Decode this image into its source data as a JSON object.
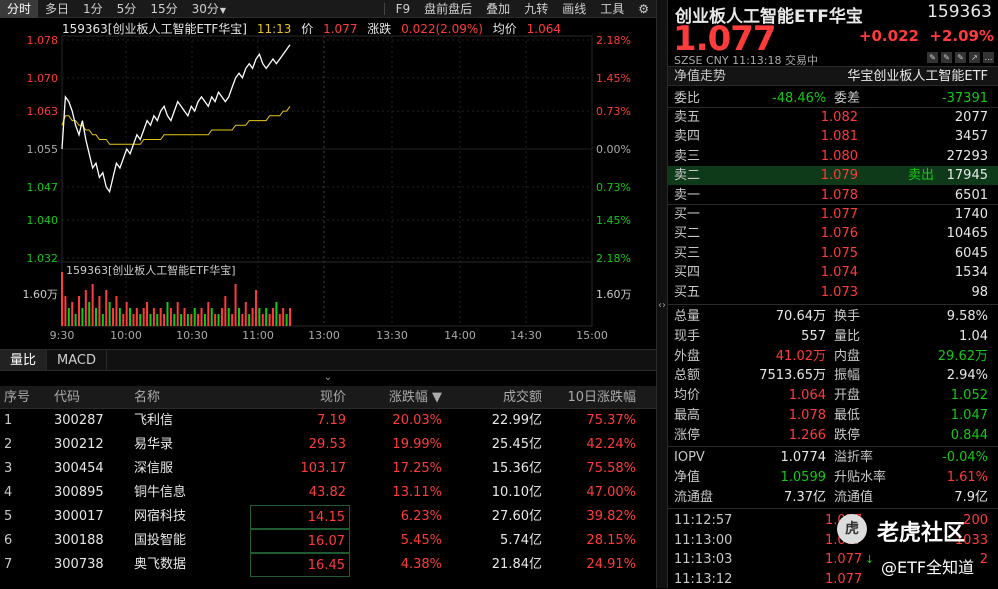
{
  "toolbar": {
    "tabs": [
      "分时",
      "多日",
      "1分",
      "5分",
      "15分",
      "30分"
    ],
    "more": [
      "F9",
      "盘前盘后",
      "叠加",
      "九转",
      "画线",
      "工具"
    ]
  },
  "info": {
    "name": "159363[创业板人工智能ETF华宝]",
    "time": "11:13",
    "price_label": "价",
    "price": "1.077",
    "chg_label": "涨跌",
    "chg": "0.022(2.09%)",
    "avg_label": "均价",
    "avg": "1.064"
  },
  "chart_data": {
    "type": "line",
    "y_ticks_left": [
      "1.078",
      "1.070",
      "1.063",
      "1.055",
      "1.047",
      "1.040",
      "1.032"
    ],
    "y_ticks_right": [
      "2.18%",
      "1.45%",
      "0.73%",
      "0.00%",
      "0.73%",
      "1.45%",
      "2.18%"
    ],
    "vol_label_left": "1.60万",
    "vol_label_right": "1.60万",
    "vol_series_label": "159363[创业板人工智能ETF华宝]",
    "x_ticks": [
      "9:30",
      "10:00",
      "10:30",
      "11:00",
      "13:00",
      "13:30",
      "14:00",
      "14:30",
      "15:00"
    ],
    "ylim": [
      1.032,
      1.078
    ],
    "prev_close": 1.055,
    "price_series": [
      1.055,
      1.066,
      1.065,
      1.063,
      1.06,
      1.058,
      1.061,
      1.057,
      1.054,
      1.051,
      1.052,
      1.049,
      1.05,
      1.047,
      1.046,
      1.049,
      1.052,
      1.051,
      1.053,
      1.055,
      1.054,
      1.056,
      1.058,
      1.057,
      1.059,
      1.061,
      1.06,
      1.062,
      1.061,
      1.063,
      1.064,
      1.062,
      1.061,
      1.063,
      1.065,
      1.064,
      1.063,
      1.062,
      1.064,
      1.063,
      1.065,
      1.066,
      1.065,
      1.064,
      1.066,
      1.065,
      1.067,
      1.066,
      1.065,
      1.066,
      1.068,
      1.07,
      1.071,
      1.07,
      1.072,
      1.073,
      1.072,
      1.074,
      1.075,
      1.073,
      1.072,
      1.073,
      1.074,
      1.073,
      1.074,
      1.075,
      1.076,
      1.077
    ],
    "avg_series": [
      1.06,
      1.062,
      1.062,
      1.061,
      1.061,
      1.06,
      1.06,
      1.059,
      1.059,
      1.058,
      1.058,
      1.057,
      1.057,
      1.057,
      1.056,
      1.056,
      1.056,
      1.056,
      1.056,
      1.056,
      1.056,
      1.056,
      1.056,
      1.056,
      1.057,
      1.057,
      1.057,
      1.057,
      1.057,
      1.057,
      1.058,
      1.058,
      1.058,
      1.058,
      1.058,
      1.058,
      1.058,
      1.058,
      1.058,
      1.058,
      1.058,
      1.058,
      1.058,
      1.058,
      1.059,
      1.059,
      1.059,
      1.059,
      1.059,
      1.059,
      1.059,
      1.06,
      1.06,
      1.06,
      1.06,
      1.061,
      1.061,
      1.061,
      1.061,
      1.061,
      1.061,
      1.062,
      1.062,
      1.062,
      1.062,
      1.063,
      1.063,
      1.064
    ],
    "volume_series": [
      0.9,
      0.5,
      0.3,
      0.4,
      0.2,
      0.5,
      0.3,
      0.6,
      0.4,
      0.7,
      0.3,
      0.5,
      0.2,
      0.6,
      0.4,
      0.3,
      0.5,
      0.3,
      0.2,
      0.4,
      0.3,
      0.2,
      0.3,
      0.2,
      0.3,
      0.4,
      0.2,
      0.3,
      0.2,
      0.3,
      0.2,
      0.4,
      0.3,
      0.2,
      0.4,
      0.2,
      0.3,
      0.2,
      0.2,
      0.3,
      0.2,
      0.3,
      0.2,
      0.4,
      0.3,
      0.2,
      0.2,
      0.3,
      0.5,
      0.3,
      0.2,
      0.7,
      0.3,
      0.2,
      0.4,
      0.2,
      0.3,
      0.6,
      0.3,
      0.2,
      0.3,
      0.2,
      0.3,
      0.4,
      0.2,
      0.3,
      0.2,
      0.3
    ],
    "volume_colors": [
      "r",
      "r",
      "g",
      "r",
      "g",
      "r",
      "g",
      "r",
      "g",
      "r",
      "g",
      "r",
      "g",
      "r",
      "g",
      "r",
      "r",
      "g",
      "r",
      "r",
      "g",
      "r",
      "r",
      "g",
      "r",
      "r",
      "g",
      "r",
      "g",
      "r",
      "r",
      "g",
      "r",
      "g",
      "r",
      "g",
      "r",
      "g",
      "r",
      "g",
      "r",
      "r",
      "g",
      "r",
      "g",
      "r",
      "g",
      "r",
      "r",
      "g",
      "r",
      "r",
      "g",
      "r",
      "r",
      "g",
      "r",
      "r",
      "g",
      "r",
      "g",
      "r",
      "r",
      "g",
      "r",
      "r",
      "g",
      "r"
    ],
    "colors": {
      "price": "#ffffff",
      "avg": "#e6c619",
      "up": "#ff3b3b",
      "down": "#14c814"
    }
  },
  "subtabs": [
    "量比",
    "MACD"
  ],
  "table": {
    "headers": [
      "序号",
      "代码",
      "名称",
      "现价",
      "涨跌幅 ▼",
      "成交额",
      "10日涨跌幅"
    ],
    "rows": [
      [
        "1",
        "300287",
        "飞利信",
        "7.19",
        "20.03%",
        "22.99亿",
        "75.37%"
      ],
      [
        "2",
        "300212",
        "易华录",
        "29.53",
        "19.99%",
        "25.45亿",
        "42.24%"
      ],
      [
        "3",
        "300454",
        "深信服",
        "103.17",
        "17.25%",
        "15.36亿",
        "75.58%"
      ],
      [
        "4",
        "300895",
        "铜牛信息",
        "43.82",
        "13.11%",
        "10.10亿",
        "47.00%"
      ],
      [
        "5",
        "300017",
        "网宿科技",
        "14.15",
        "6.23%",
        "27.60亿",
        "39.82%"
      ],
      [
        "6",
        "300188",
        "国投智能",
        "16.07",
        "5.45%",
        "5.74亿",
        "28.15%"
      ],
      [
        "7",
        "300738",
        "奥飞数据",
        "16.45",
        "4.38%",
        "21.84亿",
        "24.91%"
      ]
    ]
  },
  "right": {
    "title": "创业板人工智能ETF华宝",
    "code": "159363",
    "price": "1.077",
    "change": "+0.022",
    "change_pct": "+2.09%",
    "meta": "SZSE  CNY  11:13:18  交易中",
    "nav_label": "净值走势",
    "nav_name": "华宝创业板人工智能ETF",
    "weibi": {
      "k1": "委比",
      "v1": "-48.46%",
      "k2": "委差",
      "v2": "-37391"
    },
    "asks": [
      {
        "label": "卖五",
        "price": "1.082",
        "vol": "2077",
        "note": ""
      },
      {
        "label": "卖四",
        "price": "1.081",
        "vol": "3457",
        "note": ""
      },
      {
        "label": "卖三",
        "price": "1.080",
        "vol": "27293",
        "note": ""
      },
      {
        "label": "卖二",
        "price": "1.079",
        "vol": "17945",
        "note": "卖出"
      },
      {
        "label": "卖一",
        "price": "1.078",
        "vol": "6501",
        "note": ""
      }
    ],
    "bids": [
      {
        "label": "买一",
        "price": "1.077",
        "vol": "1740"
      },
      {
        "label": "买二",
        "price": "1.076",
        "vol": "10465"
      },
      {
        "label": "买三",
        "price": "1.075",
        "vol": "6045"
      },
      {
        "label": "买四",
        "price": "1.074",
        "vol": "1534"
      },
      {
        "label": "买五",
        "price": "1.073",
        "vol": "98"
      }
    ],
    "stats": [
      {
        "k1": "总量",
        "v1": "70.64万",
        "c1": "white",
        "k2": "换手",
        "v2": "9.58%",
        "c2": "white"
      },
      {
        "k1": "现手",
        "v1": "557",
        "c1": "white",
        "k2": "量比",
        "v2": "1.04",
        "c2": "white"
      },
      {
        "k1": "外盘",
        "v1": "41.02万",
        "c1": "red",
        "k2": "内盘",
        "v2": "29.62万",
        "c2": "green"
      },
      {
        "k1": "总额",
        "v1": "7513.65万",
        "c1": "white",
        "k2": "振幅",
        "v2": "2.94%",
        "c2": "white"
      },
      {
        "k1": "均价",
        "v1": "1.064",
        "c1": "red",
        "k2": "开盘",
        "v2": "1.052",
        "c2": "green"
      },
      {
        "k1": "最高",
        "v1": "1.078",
        "c1": "red",
        "k2": "最低",
        "v2": "1.047",
        "c2": "green"
      },
      {
        "k1": "涨停",
        "v1": "1.266",
        "c1": "red",
        "k2": "跌停",
        "v2": "0.844",
        "c2": "green"
      }
    ],
    "iopv": [
      {
        "k1": "IOPV",
        "v1": "1.0774",
        "c1": "white",
        "k2": "溢折率",
        "v2": "-0.04%",
        "c2": "green"
      },
      {
        "k1": "净值",
        "v1": "1.0599",
        "c1": "green",
        "k2": "升贴水率",
        "v2": "1.61%",
        "c2": "red"
      },
      {
        "k1": "流通盘",
        "v1": "7.37亿",
        "c1": "white",
        "k2": "流通值",
        "v2": "7.9亿",
        "c2": "white"
      }
    ],
    "ticks": [
      {
        "time": "11:12:57",
        "price": "1.077",
        "dir": "",
        "vol": "200"
      },
      {
        "time": "11:13:00",
        "price": "1.077",
        "dir": "",
        "vol": "1033"
      },
      {
        "time": "11:13:03",
        "price": "1.077",
        "dir": "↓",
        "vol": "2"
      },
      {
        "time": "11:13:12",
        "price": "1.077",
        "dir": "",
        "vol": ""
      }
    ]
  },
  "watermark": {
    "line1": "老虎社区",
    "line2": "@ETF全知道"
  }
}
